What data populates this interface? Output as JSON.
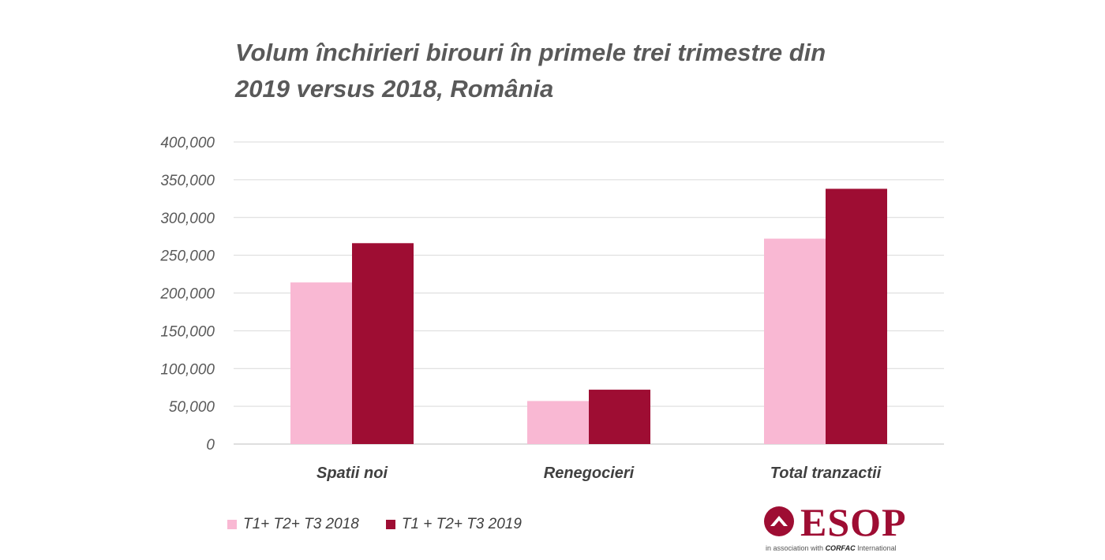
{
  "title_line1": "Volum închirieri birouri în primele trei trimestre din",
  "title_line2": "2019 versus 2018, România",
  "legend": [
    {
      "label": "T1+ T2+ T3 2018",
      "color": "#f9b8d3"
    },
    {
      "label": "T1 + T2+ T3 2019",
      "color": "#9e0d33"
    }
  ],
  "logo": {
    "text": "ESOP",
    "tagline_prefix": "in association with",
    "tagline_brand": "CORFAC",
    "tagline_suffix": "International"
  },
  "chart_data": {
    "type": "bar",
    "title": "Volum închirieri birouri în primele trei trimestre din 2019 versus 2018, România",
    "categories": [
      "Spatii noi",
      "Renegocieri",
      "Total tranzactii"
    ],
    "series": [
      {
        "name": "T1+ T2+ T3 2018",
        "color": "#f9b8d3",
        "values": [
          214000,
          57000,
          272000
        ]
      },
      {
        "name": "T1 + T2+ T3 2019",
        "color": "#9e0d33",
        "values": [
          266000,
          72000,
          338000
        ]
      }
    ],
    "ylim": [
      0,
      400000
    ],
    "yticks": [
      "0",
      "50,000",
      "100,000",
      "150,000",
      "200,000",
      "250,000",
      "300,000",
      "350,000",
      "400,000"
    ],
    "grid": true,
    "legend_position": "bottom-left"
  }
}
